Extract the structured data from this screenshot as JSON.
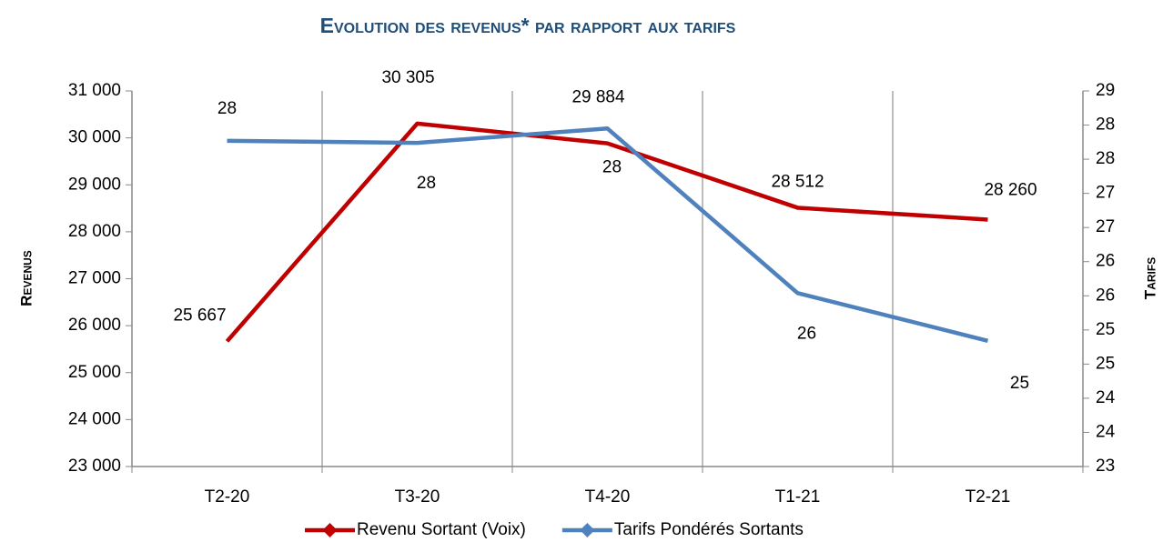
{
  "chart_data": {
    "type": "line",
    "title": "Evolution des revenus* par rapport aux tarifs",
    "y_label": "Revenus",
    "y2_label": "Tarifs",
    "categories": [
      "T2-20",
      "T3-20",
      "T4-20",
      "T1-21",
      "T2-21"
    ],
    "series": [
      {
        "name": "Revenu Sortant (Voix)",
        "color": "#c00000",
        "values": [
          25667,
          30305,
          29884,
          28512,
          28260
        ],
        "value_labels": [
          "25 667",
          "30 305",
          "29 884",
          "28 512",
          "28 260"
        ]
      },
      {
        "name": "Tarifs Pondérés Sortants",
        "color": "#4f81bd",
        "axis": "y2",
        "values": [
          27.77,
          27.74,
          27.95,
          25.54,
          24.84
        ],
        "value_labels": [
          "28",
          "28",
          "28",
          "26",
          "25"
        ]
      }
    ],
    "ylim": [
      23000,
      31000
    ],
    "yticks": [
      {
        "value": 23000,
        "label": "23 000"
      },
      {
        "value": 24000,
        "label": "24 000"
      },
      {
        "value": 25000,
        "label": "25 000"
      },
      {
        "value": 26000,
        "label": "26 000"
      },
      {
        "value": 27000,
        "label": "27 000"
      },
      {
        "value": 28000,
        "label": "28 000"
      },
      {
        "value": 29000,
        "label": "29 000"
      },
      {
        "value": 30000,
        "label": "30 000"
      },
      {
        "value": 31000,
        "label": "31 000"
      }
    ],
    "y2lim": [
      23,
      28.5
    ],
    "y2ticks": [
      23,
      {
        "value": 23.5,
        "label": "24"
      },
      24,
      {
        "value": 24.5,
        "label": "25"
      },
      25,
      {
        "value": 25.5,
        "label": "26"
      },
      26,
      {
        "value": 26.5,
        "label": "27"
      },
      27,
      {
        "value": 27.5,
        "label": "28"
      },
      28,
      {
        "value": 28.5,
        "label": "29"
      }
    ],
    "grid": "x",
    "legend": "bottom"
  }
}
